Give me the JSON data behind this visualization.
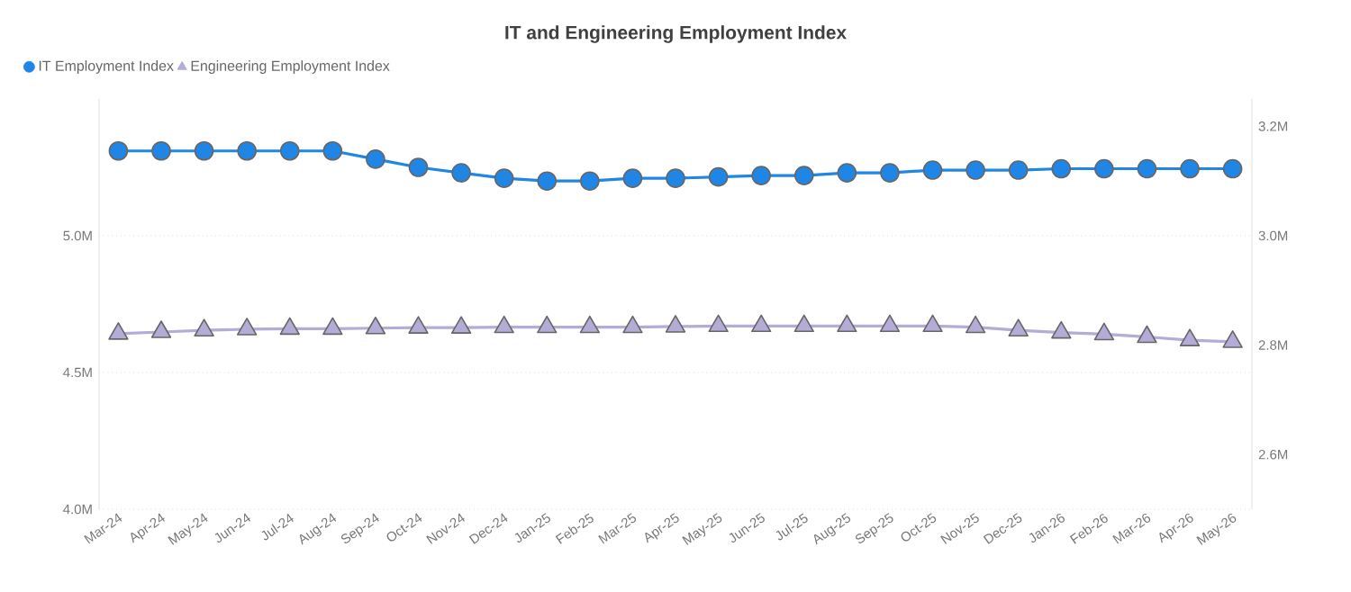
{
  "chart_data": {
    "type": "line",
    "title": "IT and Engineering Employment Index",
    "categories": [
      "Mar-24",
      "Apr-24",
      "May-24",
      "Jun-24",
      "Jul-24",
      "Aug-24",
      "Sep-24",
      "Oct-24",
      "Nov-24",
      "Dec-24",
      "Jan-25",
      "Feb-25",
      "Mar-25",
      "Apr-25",
      "May-25",
      "Jun-25",
      "Jul-25",
      "Aug-25",
      "Sep-25",
      "Oct-25",
      "Nov-25",
      "Dec-25",
      "Jan-26",
      "Feb-26",
      "Mar-26",
      "Apr-26",
      "May-26"
    ],
    "series": [
      {
        "name": "IT Employment Index",
        "color": "#2086e6",
        "marker": "circle",
        "axis": "y",
        "values": [
          5310000,
          5310000,
          5310000,
          5310000,
          5310000,
          5310000,
          5280000,
          5250000,
          5230000,
          5210000,
          5200000,
          5200000,
          5210000,
          5210000,
          5215000,
          5220000,
          5220000,
          5230000,
          5230000,
          5240000,
          5240000,
          5240000,
          5245000,
          5245000,
          5245000,
          5245000,
          5245000
        ]
      },
      {
        "name": "Engineering Employment Index",
        "color": "#b4abd6",
        "marker": "triangle",
        "axis": "y2",
        "values": [
          2821000,
          2824000,
          2827000,
          2829000,
          2830000,
          2830000,
          2831000,
          2832000,
          2832000,
          2833000,
          2833000,
          2833000,
          2833000,
          2834000,
          2835000,
          2835000,
          2835000,
          2835000,
          2835000,
          2835000,
          2833000,
          2827000,
          2823000,
          2820000,
          2815000,
          2809000,
          2806000
        ]
      }
    ],
    "ylim": [
      4000000,
      5500000
    ],
    "yticks": [
      {
        "value": 4000000,
        "label": "4.0M"
      },
      {
        "value": 4500000,
        "label": "4.5M"
      },
      {
        "value": 5000000,
        "label": "5.0M"
      }
    ],
    "y2lim": [
      2500000,
      3250000
    ],
    "y2ticks": [
      {
        "value": 2600000,
        "label": "2.6M"
      },
      {
        "value": 2800000,
        "label": "2.8M"
      },
      {
        "value": 3000000,
        "label": "3.0M"
      },
      {
        "value": 3200000,
        "label": "3.2M"
      }
    ],
    "grid": "y",
    "legend": "top left",
    "line_style": "solid"
  }
}
